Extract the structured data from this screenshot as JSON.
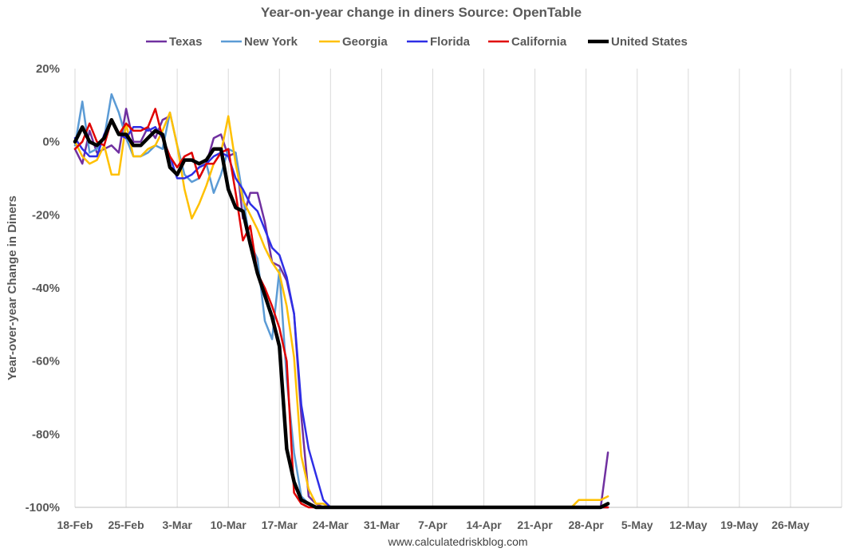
{
  "chart_data": {
    "type": "line",
    "title": "Year-on-year change in diners   Source: OpenTable",
    "ylabel": "Year-over-year Change in Diners",
    "xlabel": "",
    "source_note": "www.calculatedriskblog.com",
    "ylim": [
      -100,
      20
    ],
    "yticks": [
      "20%",
      "0%",
      "-20%",
      "-40%",
      "-60%",
      "-80%",
      "-100%"
    ],
    "ytick_values": [
      20,
      0,
      -20,
      -40,
      -60,
      -80,
      -100
    ],
    "xticks": [
      "18-Feb",
      "25-Feb",
      "3-Mar",
      "10-Mar",
      "17-Mar",
      "24-Mar",
      "31-Mar",
      "7-Apr",
      "14-Apr",
      "21-Apr",
      "28-Apr",
      "5-May",
      "12-May",
      "19-May",
      "26-May"
    ],
    "x_start": "18-Feb",
    "x_days": 105,
    "grid": "vertical",
    "legend_position": "top",
    "series": [
      {
        "name": "Texas",
        "color": "#7030a0",
        "width": 2.5,
        "values": [
          -2,
          -6,
          3,
          -3,
          -2,
          -1,
          -3,
          9,
          0,
          0,
          4,
          1,
          6,
          7,
          null,
          null,
          null,
          -7,
          -6,
          1,
          2,
          -4,
          -3,
          -21,
          -14,
          -14,
          -22,
          -33,
          -34,
          -38,
          -47,
          -75,
          -97,
          -99,
          -100,
          -100,
          -100,
          -100,
          -100,
          -100,
          -100,
          -100,
          -100,
          -100,
          -100,
          -100,
          -100,
          -100,
          -100,
          -100,
          -100,
          -100,
          -100,
          -100,
          -100,
          -100,
          -100,
          -100,
          -100,
          -100,
          -100,
          -100,
          -100,
          -100,
          -100,
          -100,
          -100,
          -100,
          -100,
          -100,
          -100,
          -100,
          -100,
          -85
        ]
      },
      {
        "name": "New York",
        "color": "#5b9bd5",
        "width": 2.5,
        "values": [
          -1,
          11,
          -3,
          -2,
          1,
          13,
          8,
          1,
          -4,
          -4,
          -3,
          -1,
          -2,
          8,
          -1,
          -9,
          -11,
          -10,
          -6,
          -14,
          -9,
          -2,
          -3,
          -15,
          -28,
          -32,
          -49,
          -54,
          -35,
          -65,
          -85,
          -97,
          -99,
          -100,
          -100,
          -100,
          -100,
          -100,
          -100,
          -100,
          -100,
          -100,
          -100,
          -100,
          -100,
          -100,
          -100,
          -100,
          -100,
          -100,
          -100,
          -100,
          -100,
          -100,
          -100,
          -100,
          -100,
          -100,
          -100,
          -100,
          -100,
          -100,
          -100,
          -100,
          -100,
          -100,
          -100,
          -100,
          -100,
          -100,
          -100,
          -100,
          -100,
          -100
        ]
      },
      {
        "name": "Georgia",
        "color": "#ffc000",
        "width": 2.5,
        "values": [
          0,
          -4,
          -6,
          -5,
          -1,
          -9,
          -9,
          5,
          -4,
          -4,
          -2,
          -1,
          3,
          8,
          -1,
          -13,
          -21,
          -17,
          -12,
          -6,
          -3,
          7,
          -6,
          -16,
          -20,
          -24,
          -29,
          -33,
          -36,
          -45,
          -59,
          -86,
          -95,
          -99,
          -99,
          -100,
          -100,
          -100,
          -100,
          -100,
          -100,
          -100,
          -100,
          -100,
          -100,
          -100,
          -100,
          -100,
          -100,
          -100,
          -100,
          -100,
          -100,
          -100,
          -100,
          -100,
          -100,
          -100,
          -100,
          -100,
          -100,
          -100,
          -100,
          -100,
          -100,
          -100,
          -100,
          -100,
          -100,
          -98,
          -98,
          -98,
          -98,
          -97
        ]
      },
      {
        "name": "Florida",
        "color": "#2e2ee6",
        "width": 2.5,
        "values": [
          1,
          -2,
          -4,
          -4,
          2,
          6,
          2,
          1,
          4,
          4,
          3,
          4,
          1,
          -4,
          -10,
          -10,
          -9,
          -7,
          -6,
          -4,
          -3,
          -4,
          -10,
          -13,
          -17,
          -19,
          -24,
          -29,
          -31,
          -37,
          -47,
          -72,
          -84,
          -91,
          -98,
          -100,
          -100,
          -100,
          -100,
          -100,
          -100,
          -100,
          -100,
          -100,
          -100,
          -100,
          -100,
          -100,
          -100,
          -100,
          -100,
          -100,
          -100,
          -100,
          -100,
          -100,
          -100,
          -100,
          -100,
          -100,
          -100,
          -100,
          -100,
          -100,
          -100,
          -100,
          -100,
          -100,
          -100,
          -100,
          -100,
          -100,
          -100,
          -100
        ]
      },
      {
        "name": "California",
        "color": "#e00000",
        "width": 2.5,
        "values": [
          -2,
          0,
          5,
          0,
          -1,
          6,
          2,
          5,
          3,
          3,
          4,
          9,
          1,
          -4,
          -7,
          -4,
          -3,
          -10,
          -6,
          -6,
          -3,
          -2,
          -14,
          -27,
          -23,
          -36,
          -40,
          -45,
          -51,
          -60,
          -96,
          -99,
          -100,
          -100,
          -100,
          -100,
          -100,
          -100,
          -100,
          -100,
          -100,
          -100,
          -100,
          -100,
          -100,
          -100,
          -100,
          -100,
          -100,
          -100,
          -100,
          -100,
          -100,
          -100,
          -100,
          -100,
          -100,
          -100,
          -100,
          -100,
          -100,
          -100,
          -100,
          -100,
          -100,
          -100,
          -100,
          -100,
          -100,
          -100,
          -100,
          -100,
          -100,
          -100
        ]
      },
      {
        "name": "United States",
        "color": "#000000",
        "width": 4.5,
        "values": [
          0,
          4,
          0,
          -1,
          1,
          6,
          2,
          2,
          -1,
          -1,
          1,
          3,
          2,
          -7,
          -9,
          -5,
          -5,
          -6,
          -5,
          -2,
          -2,
          -13,
          -18,
          -19,
          -28,
          -36,
          -42,
          -48,
          -56,
          -84,
          -93,
          -98,
          -99,
          -100,
          -100,
          -100,
          -100,
          -100,
          -100,
          -100,
          -100,
          -100,
          -100,
          -100,
          -100,
          -100,
          -100,
          -100,
          -100,
          -100,
          -100,
          -100,
          -100,
          -100,
          -100,
          -100,
          -100,
          -100,
          -100,
          -100,
          -100,
          -100,
          -100,
          -100,
          -100,
          -100,
          -100,
          -100,
          -100,
          -100,
          -100,
          -100,
          -100,
          -99
        ]
      }
    ]
  }
}
